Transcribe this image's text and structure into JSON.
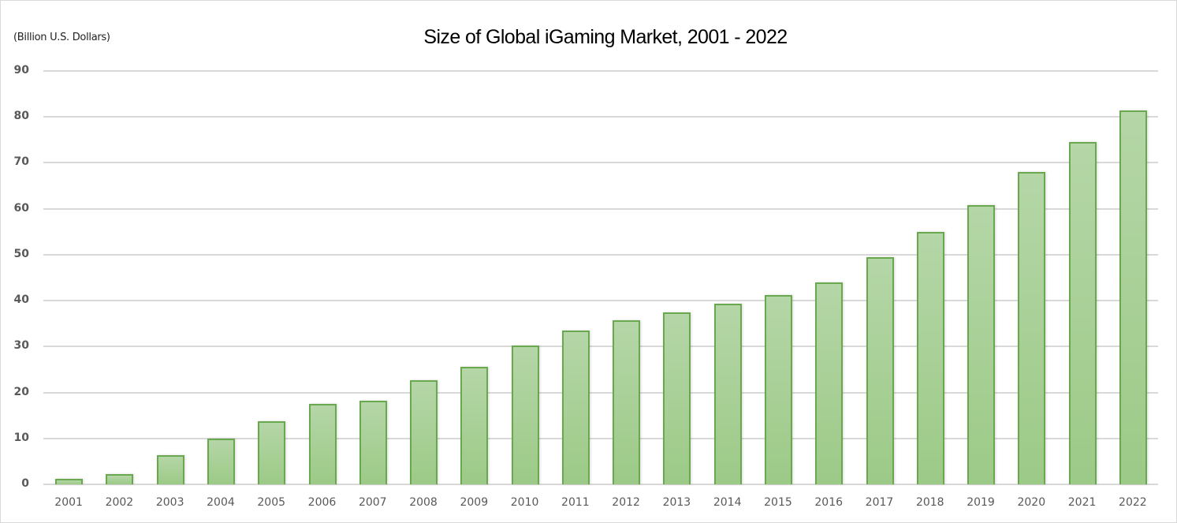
{
  "chart_data": {
    "type": "bar",
    "title": "Size of Global iGaming Market, 2001 - 2022",
    "ylabel": "(Billion  U.S. Dollars)",
    "xlabel": "",
    "ylim": [
      0,
      90
    ],
    "yticks": [
      "0",
      "10",
      "20",
      "30",
      "40",
      "50",
      "60",
      "70",
      "80",
      "90"
    ],
    "grid": true,
    "legend": null,
    "bar_color": "#a9d18e",
    "bar_border_color": "#6aa84f",
    "categories": [
      "2001",
      "2002",
      "2003",
      "2004",
      "2005",
      "2006",
      "2007",
      "2008",
      "2009",
      "2010",
      "2011",
      "2012",
      "2013",
      "2014",
      "2015",
      "2016",
      "2017",
      "2018",
      "2019",
      "2020",
      "2021",
      "2022"
    ],
    "values": [
      1.2,
      2.3,
      6.4,
      10.0,
      13.8,
      17.5,
      18.2,
      22.7,
      25.6,
      30.3,
      33.5,
      35.7,
      37.5,
      39.3,
      41.2,
      44.0,
      49.5,
      55.0,
      60.8,
      68.0,
      74.6,
      81.4
    ]
  }
}
